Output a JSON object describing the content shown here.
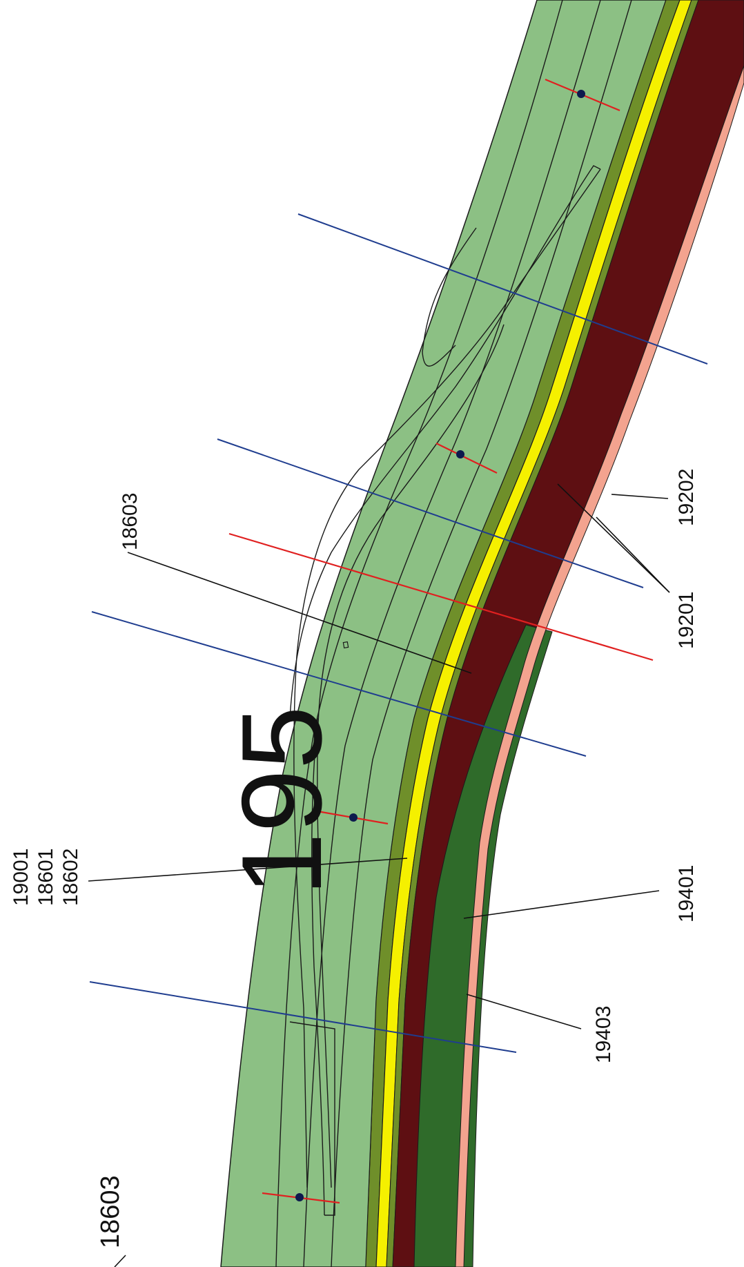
{
  "map": {
    "section_number": "195",
    "labels": {
      "top_left_multi": [
        "19001",
        "18601",
        "18602"
      ],
      "top_center": "18603",
      "bottom_left": "18603",
      "right_upper_a": "19202",
      "right_upper_b": "19201",
      "right_mid": "19401",
      "right_lower": "19403"
    },
    "colors": {
      "background": "#ffffff",
      "green_fill": "#8cc084",
      "green_line": "#1a1a1a",
      "yellow_band": "#f5f000",
      "olive_edge": "#6f8f2a",
      "maroon_band": "#5e0f12",
      "dark_green_band": "#2f6b2a",
      "salmon_edge": "#f3a38f",
      "blue_line": "#1f3d8f",
      "red_line": "#e02020",
      "dot": "#0d1a4d",
      "leader_line": "#111111"
    }
  }
}
